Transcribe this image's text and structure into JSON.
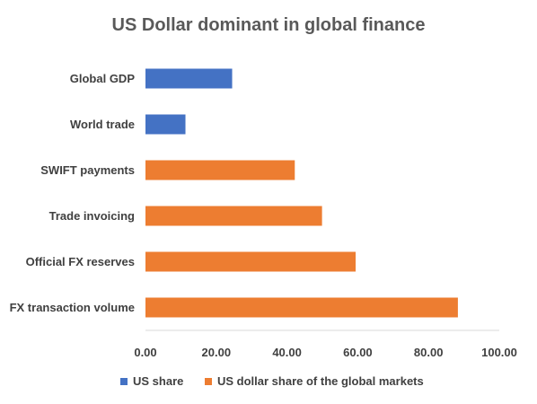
{
  "chart_data": {
    "type": "bar",
    "orientation": "horizontal",
    "title": "US Dollar dominant in global finance",
    "xlabel": "",
    "ylabel": "",
    "xlim": [
      0,
      100
    ],
    "xticks": [
      "0.00",
      "20.00",
      "40.00",
      "60.00",
      "80.00",
      "100.00"
    ],
    "xtick_values": [
      0,
      20,
      40,
      60,
      80,
      100
    ],
    "grid": false,
    "legend_position": "bottom",
    "categories": [
      "Global GDP",
      "World trade",
      "SWIFT payments",
      "Trade invoicing",
      "Official FX reserves",
      "FX transaction volume"
    ],
    "values": [
      24.5,
      11.3,
      42.2,
      49.9,
      59.4,
      88.3
    ],
    "bar_series": [
      "US share",
      "US share",
      "US dollar share of the global markets",
      "US dollar share of the global markets",
      "US dollar share of the global markets",
      "US dollar share of the global markets"
    ],
    "legend": [
      {
        "name": "US share",
        "color": "#4472C4"
      },
      {
        "name": "US dollar share of the global markets",
        "color": "#ED7D31"
      }
    ]
  }
}
